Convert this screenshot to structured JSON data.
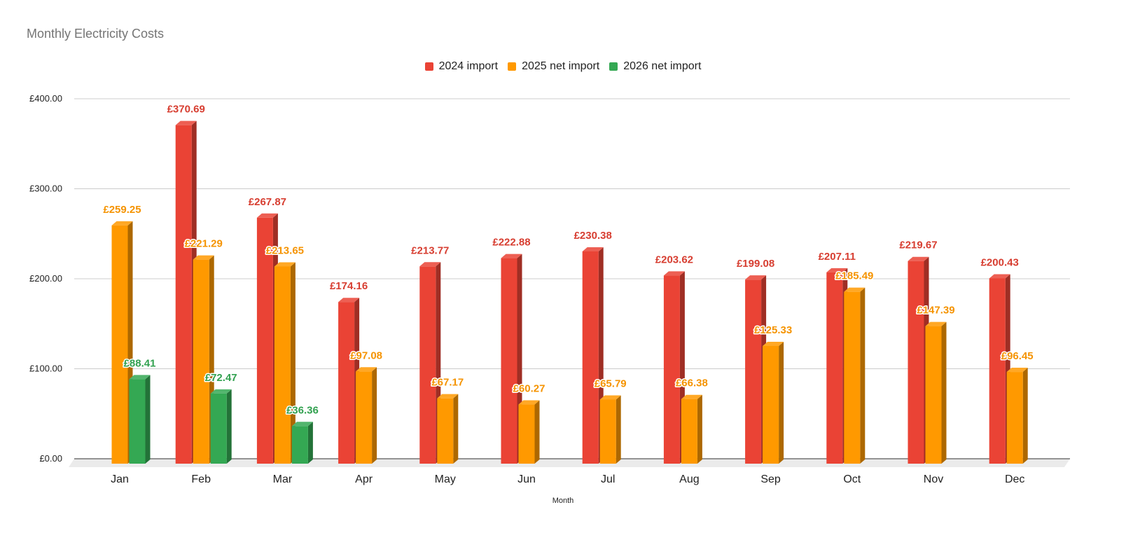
{
  "chart_data": {
    "type": "bar",
    "title": "Monthly Electricity Costs",
    "xlabel": "Month",
    "ylabel": "",
    "ylim": [
      0,
      400
    ],
    "yticks": [
      "£0.00",
      "£100.00",
      "£200.00",
      "£300.00",
      "£400.00"
    ],
    "y_tick_values": [
      0,
      100,
      200,
      300,
      400
    ],
    "grid": true,
    "legend_position": "top",
    "style": "3d-bars",
    "categories": [
      "Jan",
      "Feb",
      "Mar",
      "Apr",
      "May",
      "Jun",
      "Jul",
      "Aug",
      "Sep",
      "Oct",
      "Nov",
      "Dec"
    ],
    "series": [
      {
        "name": "2024 import",
        "color": "#ea4335",
        "values": [
          null,
          370.69,
          267.87,
          174.16,
          213.77,
          222.88,
          230.38,
          203.62,
          199.08,
          207.11,
          219.67,
          200.43
        ],
        "labels": [
          "",
          "£370.69",
          "£267.87",
          "£174.16",
          "£213.77",
          "£222.88",
          "£230.38",
          "£203.62",
          "£199.08",
          "£207.11",
          "£219.67",
          "£200.43"
        ]
      },
      {
        "name": "2025 net import",
        "color": "#ff9900",
        "values": [
          259.25,
          221.29,
          213.65,
          97.08,
          67.17,
          60.27,
          65.79,
          66.38,
          125.33,
          185.49,
          147.39,
          96.45
        ],
        "labels": [
          "£259.25",
          "£221.29",
          "£213.65",
          "£97.08",
          "£67.17",
          "£60.27",
          "£65.79",
          "£66.38",
          "£125.33",
          "£185.49",
          "£147.39",
          "£96.45"
        ]
      },
      {
        "name": "2026 net import",
        "color": "#34a853",
        "values": [
          88.41,
          72.47,
          36.36,
          null,
          null,
          null,
          null,
          null,
          null,
          null,
          null,
          null
        ],
        "labels": [
          "£88.41",
          "£72.47",
          "£36.36",
          "",
          "",
          "",
          "",
          "",
          "",
          "",
          "",
          ""
        ]
      }
    ]
  }
}
